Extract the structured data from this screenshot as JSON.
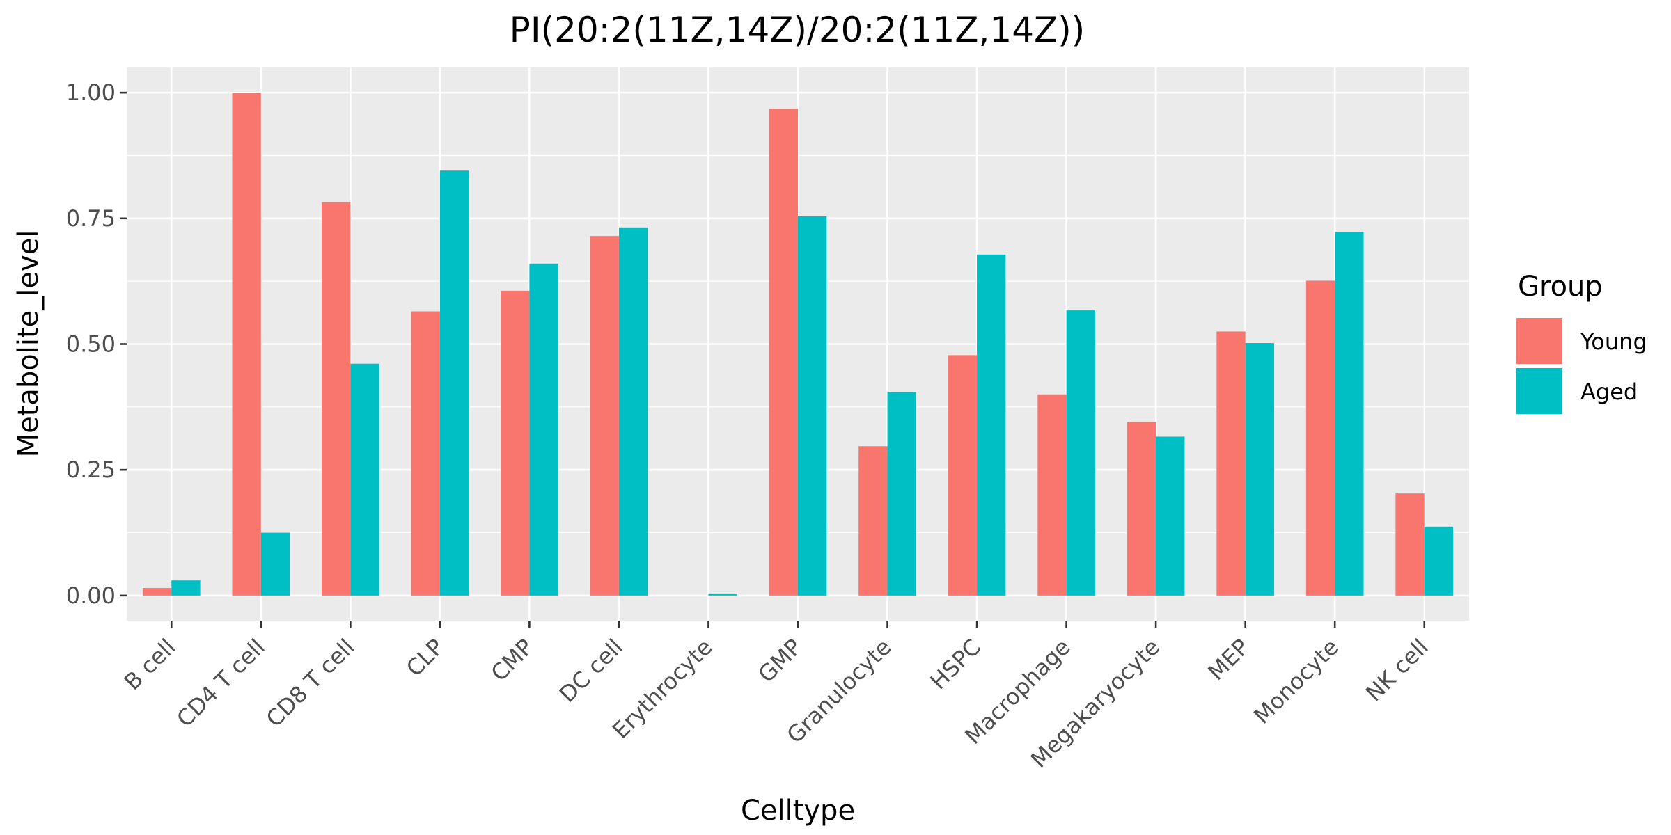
{
  "chart_data": {
    "type": "bar",
    "title": "PI(20:2(11Z,14Z)/20:2(11Z,14Z))",
    "xlabel": "Celltype",
    "ylabel": "Metabolite_level",
    "ylim": [
      -0.05,
      1.05
    ],
    "yticks": [
      0.0,
      0.25,
      0.5,
      0.75,
      1.0
    ],
    "ytick_labels": [
      "0.00",
      "0.25",
      "0.50",
      "0.75",
      "1.00"
    ],
    "grid": true,
    "legend_title": "Group",
    "legend_position": "right",
    "categories": [
      "B cell",
      "CD4 T cell",
      "CD8 T cell",
      "CLP",
      "CMP",
      "DC cell",
      "Erythrocyte",
      "GMP",
      "Granulocyte",
      "HSPC",
      "Macrophage",
      "Megakaryocyte",
      "MEP",
      "Monocyte",
      "NK cell"
    ],
    "series": [
      {
        "name": "Young",
        "color": "#f8766d",
        "values": [
          0.015,
          1.0,
          0.782,
          0.565,
          0.606,
          0.715,
          0.0,
          0.968,
          0.297,
          0.478,
          0.4,
          0.345,
          0.525,
          0.626,
          0.203
        ]
      },
      {
        "name": "Aged",
        "color": "#00bfc4",
        "values": [
          0.03,
          0.125,
          0.461,
          0.845,
          0.66,
          0.732,
          0.004,
          0.754,
          0.405,
          0.678,
          0.567,
          0.316,
          0.502,
          0.723,
          0.137
        ]
      }
    ]
  }
}
